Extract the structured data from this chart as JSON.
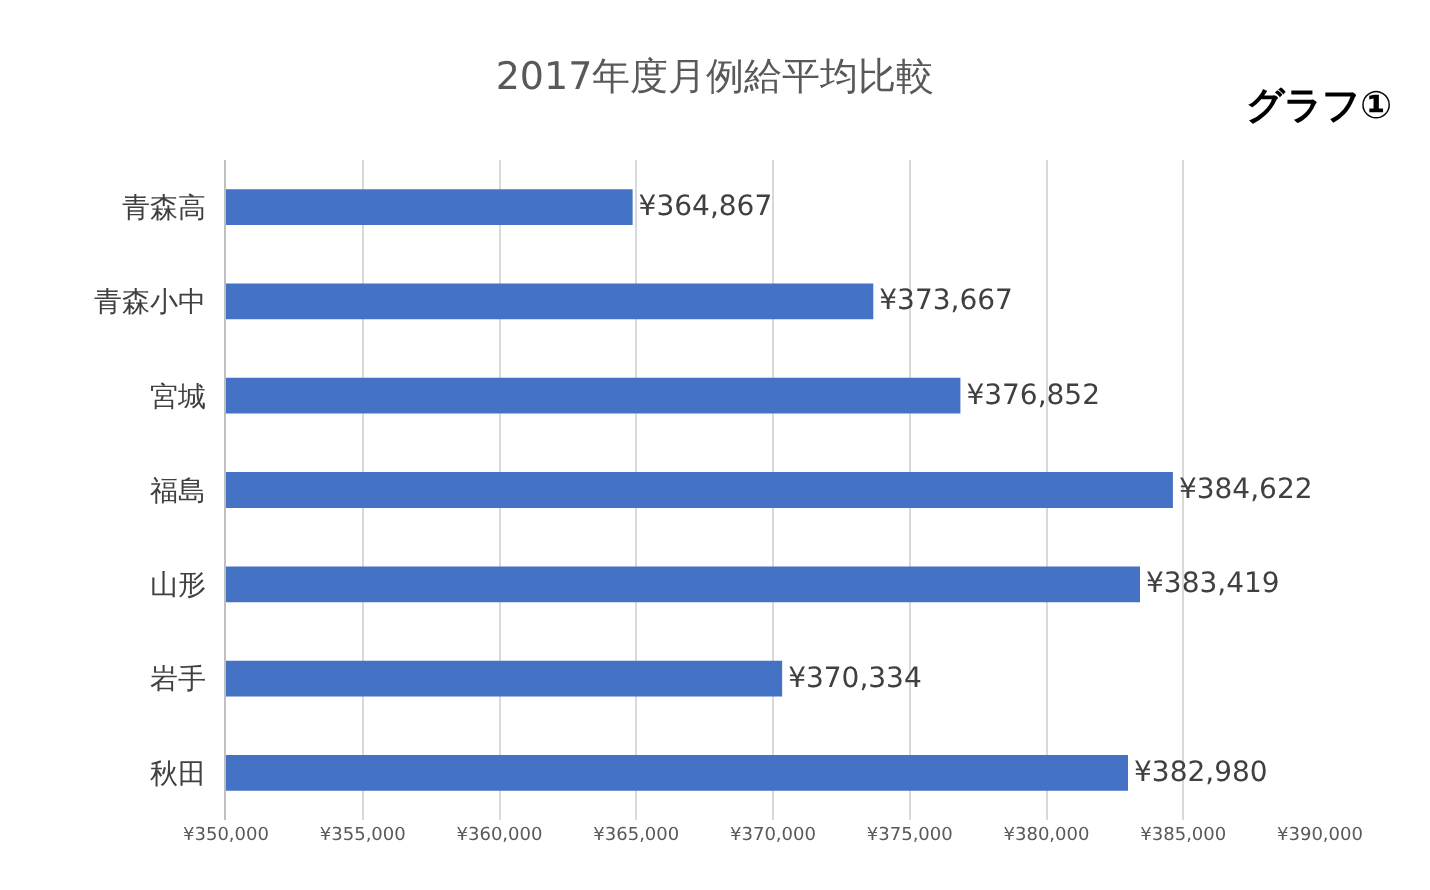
{
  "chart_data": {
    "type": "bar",
    "orientation": "horizontal",
    "title": "2017年度月例給平均比較",
    "annotations": [
      "グラフ①"
    ],
    "categories": [
      "青森高",
      "青森小中",
      "宮城",
      "福島",
      "山形",
      "岩手",
      "秋田"
    ],
    "values": [
      364867,
      373667,
      376852,
      384622,
      383419,
      370334,
      382980
    ],
    "value_labels": [
      "¥364,867",
      "¥373,667",
      "¥376,852",
      "¥384,622",
      "¥383,419",
      "¥370,334",
      "¥382,980"
    ],
    "color": "#4472c4",
    "xlim": [
      350000,
      390000
    ],
    "xticks": [
      {
        "value": 350000,
        "label": "¥350,000"
      },
      {
        "value": 355000,
        "label": "¥355,000"
      },
      {
        "value": 360000,
        "label": "¥360,000"
      },
      {
        "value": 365000,
        "label": "¥365,000"
      },
      {
        "value": 370000,
        "label": "¥370,000"
      },
      {
        "value": 375000,
        "label": "¥375,000"
      },
      {
        "value": 380000,
        "label": "¥380,000"
      },
      {
        "value": 385000,
        "label": "¥385,000"
      },
      {
        "value": 390000,
        "label": "¥390,000"
      }
    ],
    "grid": "x",
    "legend": false
  }
}
